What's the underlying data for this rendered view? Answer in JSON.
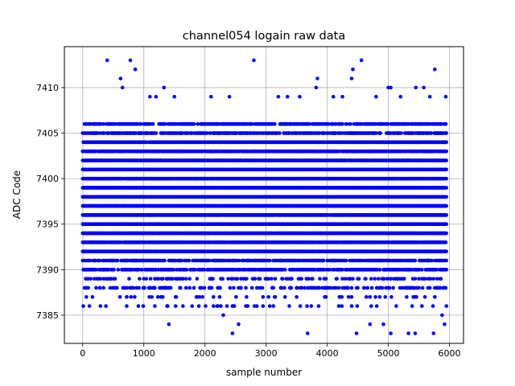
{
  "chart_data": {
    "type": "scatter",
    "title": "channel054 logain raw data",
    "xlabel": "sample number",
    "ylabel": "ADC Code",
    "xlim": [
      -300,
      6230
    ],
    "ylim": [
      7381.9,
      7414.5
    ],
    "xticks": [
      0,
      1000,
      2000,
      3000,
      4000,
      5000,
      6000
    ],
    "yticks": [
      7385,
      7390,
      7395,
      7400,
      7405,
      7410
    ],
    "grid": true,
    "marker_color": "#0000ff",
    "x_range": [
      0,
      5950
    ],
    "y_band": [
      7386,
      7406
    ],
    "points": [
      [
        400,
        7413
      ],
      [
        780,
        7413
      ],
      [
        860,
        7412
      ],
      [
        620,
        7411
      ],
      [
        650,
        7410
      ],
      [
        1330,
        7410
      ],
      [
        2800,
        7413
      ],
      [
        4560,
        7413
      ],
      [
        4420,
        7412
      ],
      [
        5760,
        7412
      ],
      [
        4400,
        7411
      ],
      [
        3840,
        7411
      ],
      [
        3820,
        7410
      ],
      [
        5000,
        7410
      ],
      [
        5040,
        7410
      ],
      [
        5450,
        7410
      ],
      [
        5580,
        7410
      ],
      [
        1410,
        7384
      ],
      [
        2550,
        7384
      ],
      [
        2450,
        7383
      ],
      [
        3680,
        7383
      ],
      [
        4480,
        7383
      ],
      [
        5040,
        7383
      ],
      [
        5330,
        7383
      ],
      [
        5440,
        7383
      ],
      [
        5740,
        7383
      ],
      [
        5920,
        7384
      ],
      [
        5880,
        7385
      ],
      [
        2300,
        7385
      ],
      [
        4700,
        7384
      ],
      [
        4920,
        7384
      ],
      [
        160,
        7387
      ],
      [
        720,
        7387
      ],
      [
        990,
        7386
      ],
      [
        1230,
        7387
      ],
      [
        1520,
        7387
      ],
      [
        1860,
        7387
      ],
      [
        2810,
        7386
      ],
      [
        2950,
        7386
      ],
      [
        3500,
        7387
      ],
      [
        3860,
        7386
      ],
      [
        4240,
        7387
      ],
      [
        1100,
        7409
      ],
      [
        1200,
        7409
      ],
      [
        1500,
        7409
      ],
      [
        2100,
        7409
      ],
      [
        2400,
        7409
      ],
      [
        3200,
        7409
      ],
      [
        3350,
        7409
      ],
      [
        3550,
        7409
      ],
      [
        4100,
        7409
      ],
      [
        4250,
        7409
      ],
      [
        4800,
        7409
      ],
      [
        5200,
        7409
      ],
      [
        5680,
        7409
      ],
      [
        5940,
        7409
      ]
    ]
  }
}
